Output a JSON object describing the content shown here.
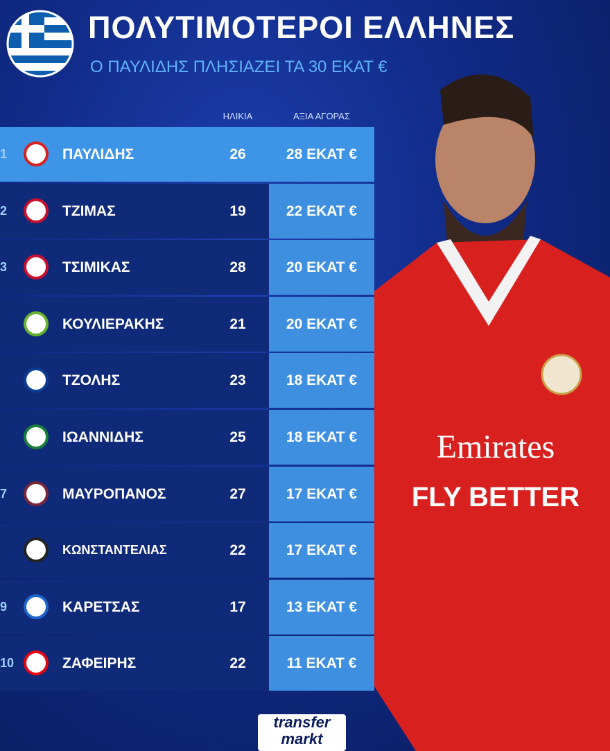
{
  "header": {
    "title": "ΠΟΛΥΤΙΜΟΤΕΡΟΙ ΕΛΛΗΝΕΣ",
    "subtitle": "Ο ΠΑΥΛΙΔΗΣ ΠΛΗΣΙΑΖΕΙ ΤΑ 30 ΕΚΑΤ €"
  },
  "table": {
    "columns": [
      "ΗΛΙΚΙΑ",
      "ΑΞΙΑ ΑΓΟΡΑΣ"
    ],
    "rows": [
      {
        "rank": "1",
        "name": "ΠΑΥΛΙΔΗΣ",
        "age": 26,
        "value": "28 ΕΚΑΤ €"
      },
      {
        "rank": "2",
        "name": "ΤΖΙΜΑΣ",
        "age": 19,
        "value": "22 ΕΚΑΤ €"
      },
      {
        "rank": "3",
        "name": "ΤΣΙΜΙΚΑΣ",
        "age": 28,
        "value": "20 ΕΚΑΤ €"
      },
      {
        "name": "ΚΟΥΛΙΕΡΑΚΗΣ",
        "age": 21,
        "value": "20 ΕΚΑΤ €"
      },
      {
        "name": "ΤΖΟΛΗΣ",
        "age": 23,
        "value": "18 ΕΚΑΤ €"
      },
      {
        "name": "ΙΩΑΝΝΙΔΗΣ",
        "age": 25,
        "value": "18 ΕΚΑΤ €"
      },
      {
        "rank": "7",
        "name": "ΜΑΥΡΟΠΑΝΟΣ",
        "age": 27,
        "value": "17 ΕΚΑΤ €"
      },
      {
        "name": "ΚΩΝΣΤΑΝΤΕΛΙΑΣ",
        "age": 22,
        "value": "17 ΕΚΑΤ €"
      },
      {
        "rank": "9",
        "name": "ΚΑΡΕΤΣΑΣ",
        "age": 17,
        "value": "13 ΕΚΑΤ €"
      },
      {
        "rank": "10",
        "name": "ΖΑΦΕΙΡΗΣ",
        "age": 22,
        "value": "11 ΕΚΑΤ €"
      }
    ]
  },
  "shirt": {
    "sponsor": "Emirates",
    "slogan": "FLY BETTER"
  },
  "footer": {
    "logo_top": "transfer",
    "logo_bottom": "markt"
  }
}
